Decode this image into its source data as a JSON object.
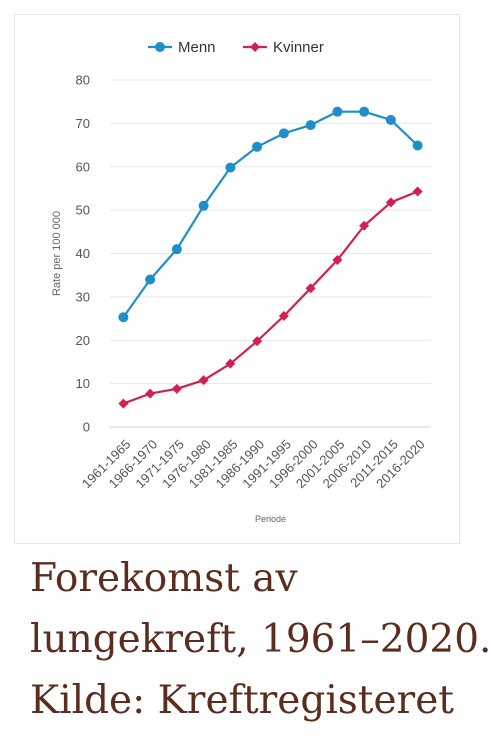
{
  "caption": {
    "line1": "Forekomst av",
    "line2": "lungekreft, 1961–2020.",
    "line3": "Kilde: Kreftregisteret"
  },
  "chart_data": {
    "type": "line",
    "categories": [
      "1961-1965",
      "1966-1970",
      "1971-1975",
      "1976-1980",
      "1981-1985",
      "1986-1990",
      "1991-1995",
      "1996-2000",
      "2001-2005",
      "2006-2010",
      "2011-2015",
      "2016-2020"
    ],
    "series": [
      {
        "name": "Menn",
        "color": "#1f8fc9",
        "marker": "circle",
        "values": [
          25.3,
          34.0,
          41.0,
          51.0,
          59.8,
          64.6,
          67.7,
          69.6,
          72.7,
          72.7,
          70.8,
          64.9
        ]
      },
      {
        "name": "Kvinner",
        "color": "#d4204f",
        "marker": "diamond",
        "values": [
          5.4,
          7.7,
          8.8,
          10.8,
          14.6,
          19.8,
          25.6,
          32.0,
          38.5,
          46.4,
          51.8,
          54.3
        ]
      }
    ],
    "xlabel": "Periode",
    "ylabel": "Rate per 100 000",
    "ylim": [
      0,
      80
    ],
    "yticks": [
      0,
      10,
      20,
      30,
      40,
      50,
      60,
      70,
      80
    ],
    "grid": true,
    "legend": "top-center"
  }
}
